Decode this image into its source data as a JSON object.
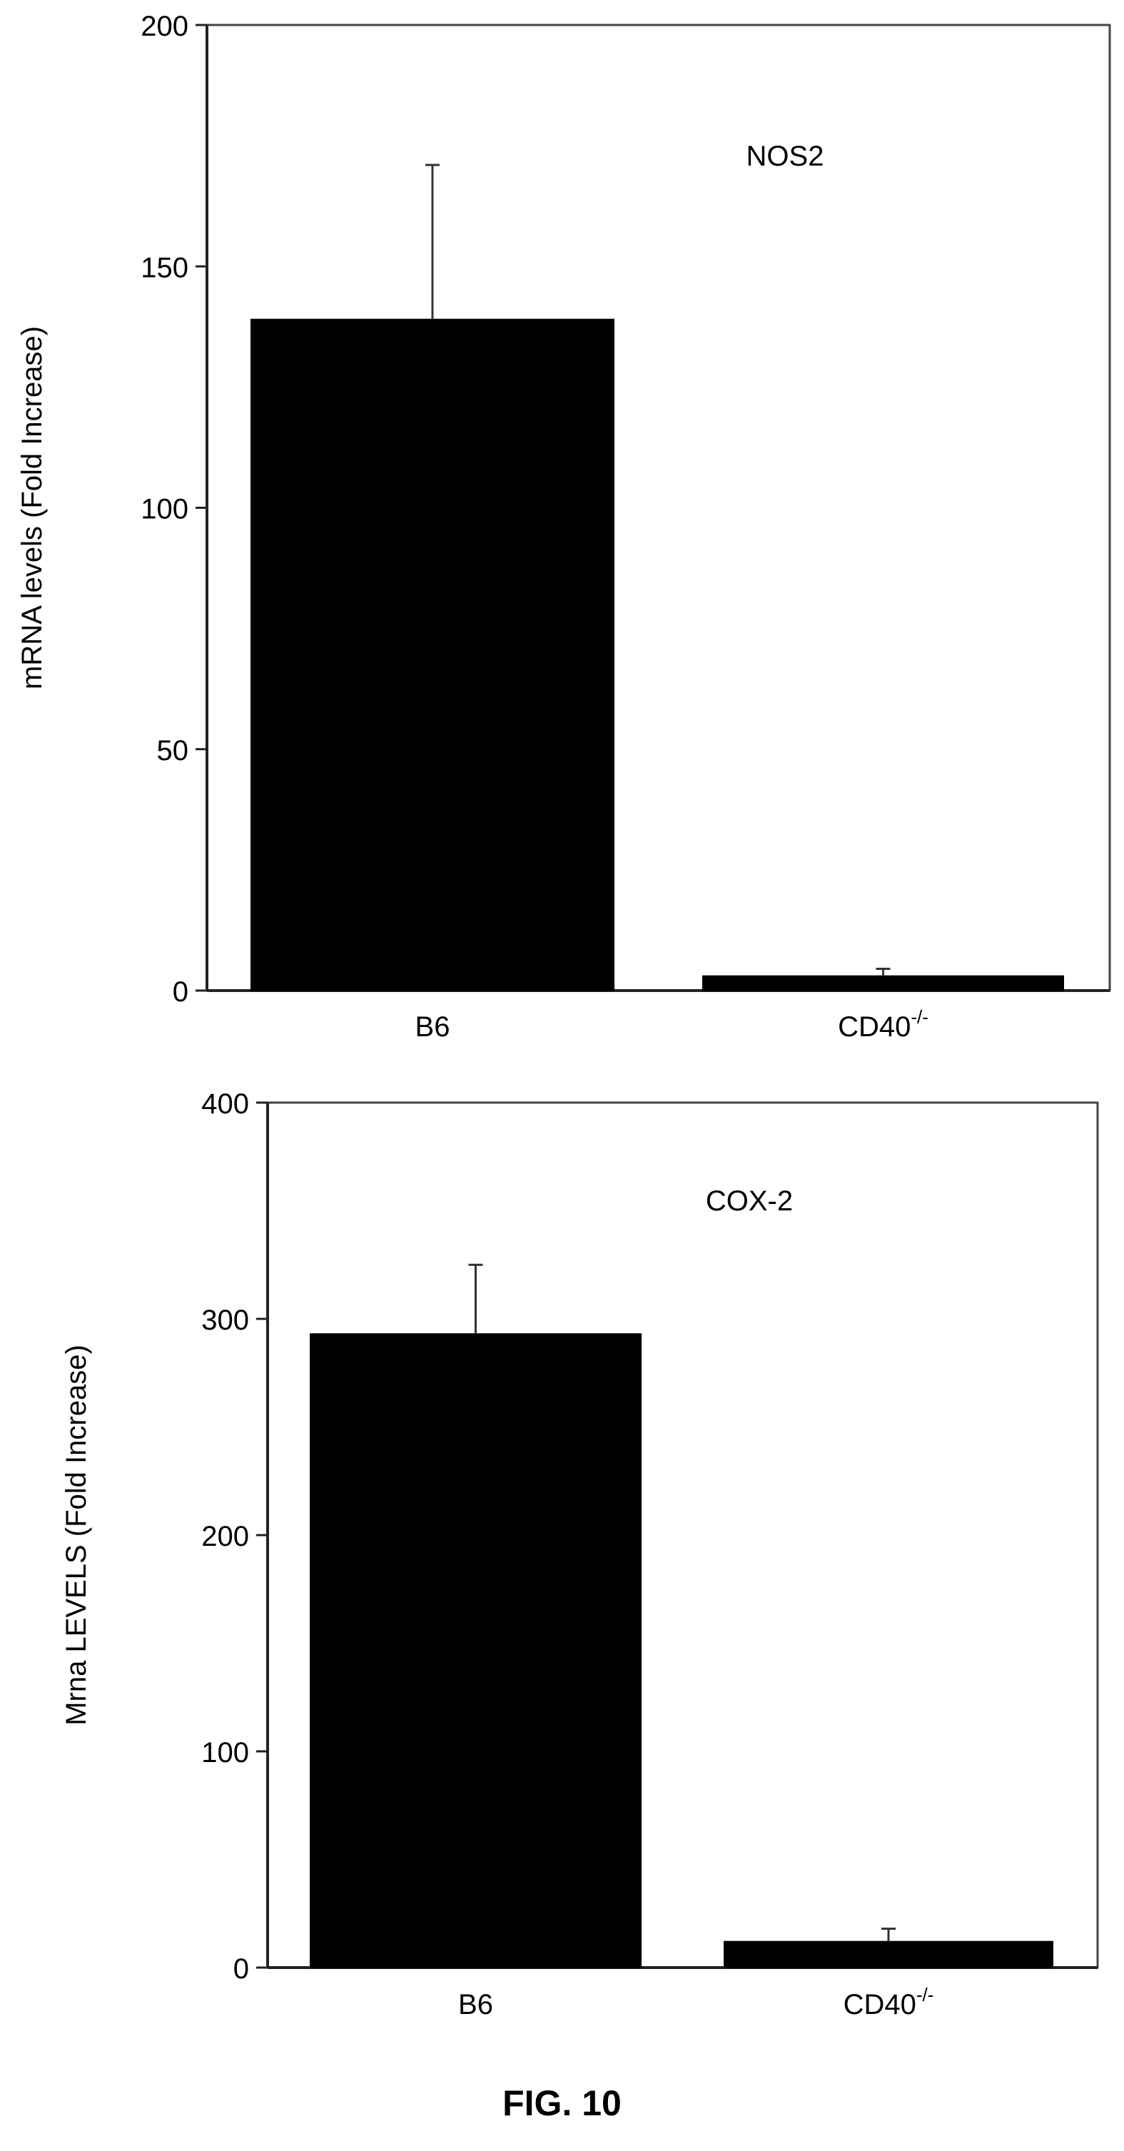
{
  "figure": {
    "caption": "FIG. 10"
  },
  "chart_data": [
    {
      "type": "bar",
      "title": "NOS2",
      "categories": [
        "B6",
        "CD40"
      ],
      "category_superscripts": [
        "",
        "-/-"
      ],
      "values": [
        139,
        3
      ],
      "error_bars": [
        32,
        1.5
      ],
      "xlabel": "",
      "ylabel": "mRNA levels (Fold Increase)",
      "ylim": [
        0,
        200
      ],
      "yticks": [
        0,
        50,
        100,
        150,
        200
      ],
      "grid": false,
      "legend": "none",
      "bar_color": "#000000"
    },
    {
      "type": "bar",
      "title": "COX-2",
      "categories": [
        "B6",
        "CD40"
      ],
      "category_superscripts": [
        "",
        "-/-"
      ],
      "values": [
        293,
        12
      ],
      "error_bars": [
        32,
        6
      ],
      "xlabel": "",
      "ylabel": "Mrna LEVELS (Fold Increase)",
      "ylim": [
        0,
        400
      ],
      "yticks": [
        0,
        100,
        200,
        300,
        400
      ],
      "grid": false,
      "legend": "none",
      "bar_color": "#000000"
    }
  ]
}
